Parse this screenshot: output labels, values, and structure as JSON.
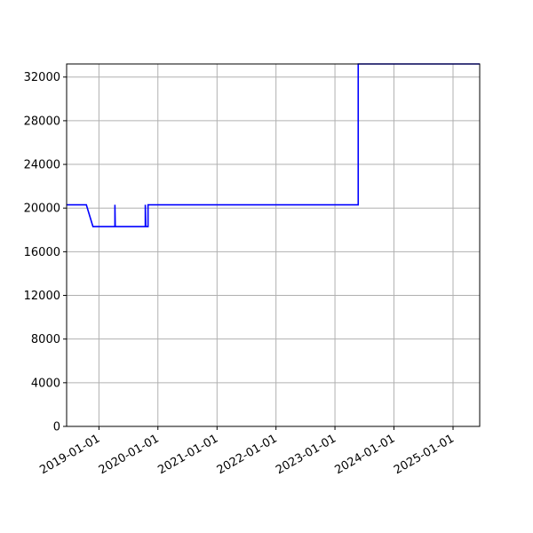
{
  "chart_data": {
    "type": "line",
    "title": "",
    "xlabel": "",
    "ylabel": "",
    "x_axis_type": "date",
    "xlim": [
      "2018-06-15",
      "2025-06-15"
    ],
    "ylim": [
      0,
      33200
    ],
    "x_ticks": [
      "2019-01-01",
      "2020-01-01",
      "2021-01-01",
      "2022-01-01",
      "2023-01-01",
      "2024-01-01",
      "2025-01-01"
    ],
    "y_ticks": [
      0,
      4000,
      8000,
      12000,
      16000,
      20000,
      24000,
      28000,
      32000
    ],
    "grid": true,
    "legend": "none",
    "colors": {
      "line": "#0000ff",
      "grid": "#b0b0b0",
      "axes": "#000000"
    },
    "series": [
      {
        "color": "#0000ff",
        "points": [
          [
            "2018-06-15",
            20300
          ],
          [
            "2018-10-15",
            20300
          ],
          [
            "2018-11-25",
            18300
          ],
          [
            "2019-04-10",
            18300
          ],
          [
            "2019-04-10",
            20300
          ],
          [
            "2019-04-12",
            18300
          ],
          [
            "2019-10-15",
            18300
          ],
          [
            "2019-10-15",
            20300
          ],
          [
            "2019-10-18",
            18300
          ],
          [
            "2019-11-01",
            18300
          ],
          [
            "2019-11-01",
            20300
          ],
          [
            "2023-05-25",
            20300
          ],
          [
            "2023-05-25",
            33200
          ],
          [
            "2025-06-15",
            33200
          ]
        ]
      }
    ]
  }
}
